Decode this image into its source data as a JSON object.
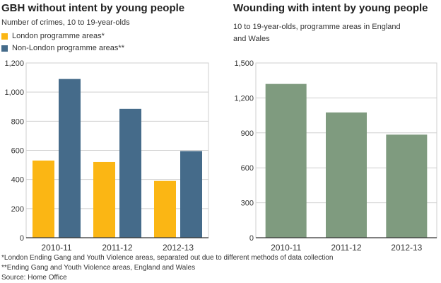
{
  "footnotes": {
    "note1": "*London Ending Gang and Youth Violence areas, separated out due to different methods of data collection",
    "note2": "**Ending Gang and Youth Violence areas, England and Wales",
    "source": "Source: Home Office"
  },
  "chart_data": [
    {
      "type": "bar",
      "title": "GBH without intent by young people",
      "subtitle": "Number of crimes, 10 to 19-year-olds",
      "categories": [
        "2010-11",
        "2011-12",
        "2012-13"
      ],
      "series": [
        {
          "name": "London programme areas*",
          "color": "#fbb614",
          "values": [
            530,
            520,
            390
          ]
        },
        {
          "name": "Non-London programme areas**",
          "color": "#456b8a",
          "values": [
            1090,
            885,
            595
          ]
        }
      ],
      "ylim": [
        0,
        1200
      ],
      "yticks": [
        0,
        200,
        400,
        600,
        800,
        1000,
        1200
      ],
      "ytick_labels": [
        "0",
        "200",
        "400",
        "600",
        "800",
        "1,000",
        "1,200"
      ],
      "grid": "horizontal",
      "legend": "top-left"
    },
    {
      "type": "bar",
      "title": "Wounding with intent by young people",
      "subtitle_lines": [
        "10 to 19-year-olds, programme areas in England",
        "and Wales"
      ],
      "categories": [
        "2010-11",
        "2011-12",
        "2012-13"
      ],
      "series": [
        {
          "color": "#7f9b7f",
          "values": [
            1320,
            1075,
            885
          ]
        }
      ],
      "ylim": [
        0,
        1500
      ],
      "yticks": [
        0,
        300,
        600,
        900,
        1200,
        1500
      ],
      "ytick_labels": [
        "0",
        "300",
        "600",
        "900",
        "1,200",
        "1,500"
      ],
      "grid": "horizontal"
    }
  ]
}
